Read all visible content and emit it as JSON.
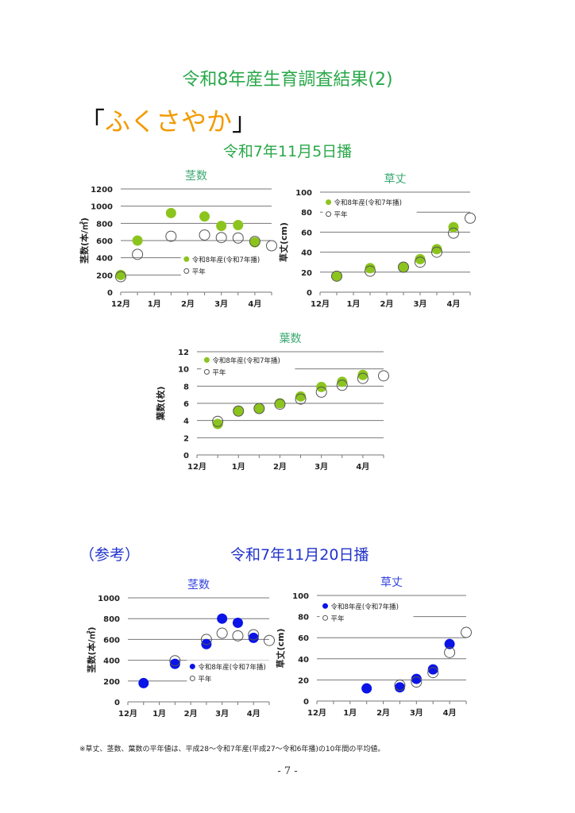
{
  "header": {
    "title": "令和8年産生育調査結果(2)",
    "variety_open": "「",
    "variety_name": "ふくさやか",
    "variety_close": "」",
    "sowing_main": "令和7年11月5日播",
    "reference_label": "（参考）",
    "sowing_ref": "令和7年11月20日播"
  },
  "footnote": "※草丈、茎数、葉数の平年値は、平成28～令和7年産(平成27～令和6年播)の10年間の平均値。",
  "page_number": "- 7 -",
  "colors": {
    "green": "#8cc41e",
    "blue": "#0a14e6",
    "title_green": "#3aa870",
    "title_blue": "#3344dd"
  },
  "chart_data": [
    {
      "id": "stems-nov5",
      "type": "scatter",
      "title": "茎数",
      "ylabel": "茎数(本/㎡)",
      "ylim": [
        0,
        1200
      ],
      "yticks": [
        0,
        200,
        400,
        600,
        800,
        1000,
        1200
      ],
      "xlabels": [
        "12月",
        "1月",
        "2月",
        "3月",
        "4月"
      ],
      "x_note": "x in half-month steps from Dec 1 (0) to mid-Apr (9)",
      "grid": true,
      "legend": "bottom-right",
      "color_key": "green",
      "series": [
        {
          "name": "令和8年産(令和7年播)",
          "style": "filled",
          "x": [
            0,
            1,
            3,
            5,
            6,
            7,
            8
          ],
          "values": [
            200,
            600,
            920,
            880,
            770,
            780,
            580
          ]
        },
        {
          "name": "平年",
          "style": "open",
          "x": [
            0,
            1,
            3,
            5,
            6,
            7,
            8,
            9
          ],
          "values": [
            180,
            440,
            650,
            665,
            635,
            630,
            590,
            540
          ]
        }
      ]
    },
    {
      "id": "height-nov5",
      "type": "scatter",
      "title": "草丈",
      "ylabel": "草丈(cm)",
      "ylim": [
        0,
        100
      ],
      "yticks": [
        0,
        20,
        40,
        60,
        80,
        100
      ],
      "xlabels": [
        "12月",
        "1月",
        "2月",
        "3月",
        "4月"
      ],
      "grid": true,
      "legend": "top-left",
      "color_key": "green",
      "series": [
        {
          "name": "令和8年産(令和7年播)",
          "style": "filled",
          "x": [
            1,
            3,
            5,
            6,
            7,
            8
          ],
          "values": [
            16,
            24,
            25,
            33,
            43,
            65
          ]
        },
        {
          "name": "平年",
          "style": "open",
          "x": [
            1,
            3,
            5,
            6,
            7,
            8,
            9
          ],
          "values": [
            16,
            21,
            25,
            30,
            40,
            59,
            74
          ]
        }
      ]
    },
    {
      "id": "leaves-nov5",
      "type": "scatter",
      "title": "葉数",
      "ylabel": "葉数(枚)",
      "ylim": [
        0,
        12
      ],
      "yticks": [
        0,
        2,
        4,
        6,
        8,
        10,
        12
      ],
      "xlabels": [
        "12月",
        "1月",
        "2月",
        "3月",
        "4月"
      ],
      "grid": true,
      "legend": "top-left",
      "color_key": "green",
      "series": [
        {
          "name": "令和8年産(令和7年播)",
          "style": "filled",
          "x": [
            1,
            2,
            3,
            4,
            5,
            6,
            7,
            8
          ],
          "values": [
            3.6,
            5.1,
            5.4,
            6.0,
            6.8,
            7.9,
            8.5,
            9.3
          ]
        },
        {
          "name": "平年",
          "style": "open",
          "x": [
            1,
            2,
            3,
            4,
            5,
            6,
            7,
            8,
            9
          ],
          "values": [
            3.9,
            5.1,
            5.4,
            5.9,
            6.5,
            7.3,
            8.1,
            8.9,
            9.2
          ]
        }
      ]
    },
    {
      "id": "stems-nov20",
      "type": "scatter",
      "title": "茎数",
      "ylabel": "茎数(本/㎡)",
      "ylim": [
        0,
        1000
      ],
      "yticks": [
        0,
        200,
        400,
        600,
        800,
        1000
      ],
      "xlabels": [
        "12月",
        "1月",
        "2月",
        "3月",
        "4月"
      ],
      "grid": true,
      "legend": "bottom-right",
      "color_key": "blue",
      "series": [
        {
          "name": "令和8年産(令和7年播)",
          "style": "filled",
          "x": [
            1,
            3,
            5,
            6,
            7,
            8
          ],
          "values": [
            180,
            365,
            555,
            800,
            760,
            615
          ]
        },
        {
          "name": "平年",
          "style": "open",
          "x": [
            3,
            5,
            6,
            7,
            8,
            9
          ],
          "values": [
            395,
            600,
            660,
            635,
            645,
            590
          ]
        }
      ]
    },
    {
      "id": "height-nov20",
      "type": "scatter",
      "title": "草丈",
      "ylabel": "草丈(cm)",
      "ylim": [
        0,
        100
      ],
      "yticks": [
        0,
        20,
        40,
        60,
        80,
        100
      ],
      "xlabels": [
        "12月",
        "1月",
        "2月",
        "3月",
        "4月"
      ],
      "grid": true,
      "legend": "top-left",
      "color_key": "blue",
      "series": [
        {
          "name": "令和8年産(令和7年播)",
          "style": "filled",
          "x": [
            3,
            5,
            6,
            7,
            8
          ],
          "values": [
            12,
            13,
            21,
            30,
            54
          ]
        },
        {
          "name": "平年",
          "style": "open",
          "x": [
            5,
            6,
            7,
            8,
            9
          ],
          "values": [
            15,
            18,
            27,
            46,
            65
          ]
        }
      ]
    }
  ]
}
